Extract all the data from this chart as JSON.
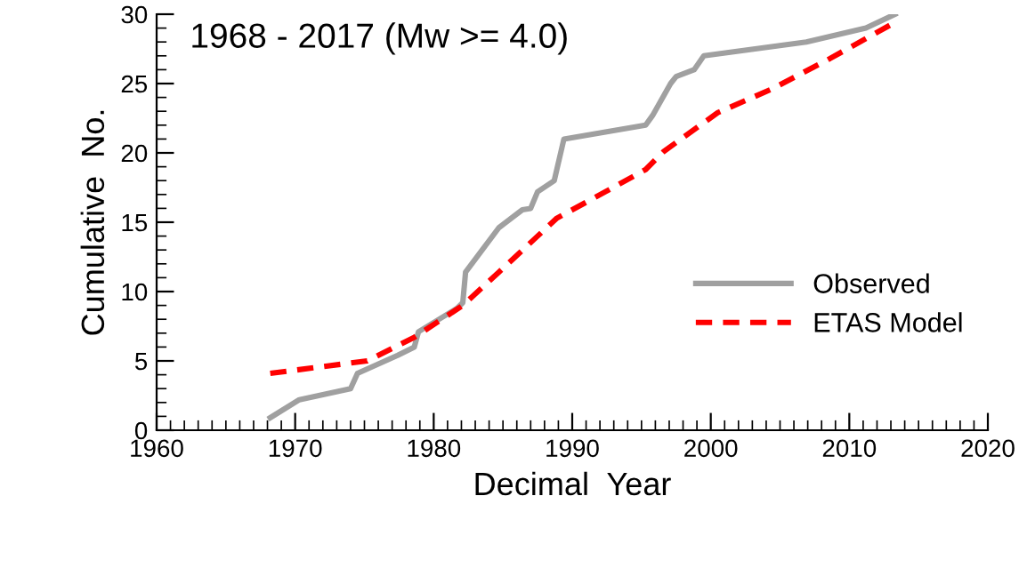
{
  "chart_data": {
    "type": "line",
    "title": "1968 - 2017 (Mw >= 4.0)",
    "xlabel": "Decimal  Year",
    "ylabel": "Cumulative  No.",
    "xlim": [
      1960,
      2020
    ],
    "xticks": [
      1960,
      1970,
      1980,
      1990,
      2000,
      2010,
      2020
    ],
    "ylim": [
      0,
      30
    ],
    "yticks": [
      0,
      5,
      10,
      15,
      20,
      25,
      30
    ],
    "grid": false,
    "legend": "right",
    "marker": "none",
    "series": [
      {
        "name": "Observed",
        "color": "#a0a0a0",
        "line_style": "solid",
        "x": [
          1968.2,
          1970.3,
          1974.0,
          1974.5,
          1977.4,
          1978.6,
          1978.9,
          1981.7,
          1982.1,
          1982.3,
          1984.7,
          1986.4,
          1987.0,
          1987.5,
          1988.7,
          1989.4,
          1995.3,
          1995.8,
          1997.1,
          1997.5,
          1998.8,
          1999.5,
          2006.9,
          2011.2,
          2013.3
        ],
        "values": [
          0.9,
          2.2,
          3.0,
          4.1,
          5.4,
          6.0,
          7.1,
          8.8,
          9.2,
          11.4,
          14.6,
          15.9,
          16.0,
          17.2,
          18.0,
          21.0,
          22.0,
          22.7,
          25.0,
          25.5,
          26.0,
          27.0,
          28.0,
          29.0,
          30.0
        ]
      },
      {
        "name": "ETAS Model",
        "color": "#ff0000",
        "line_style": "dashed",
        "x": [
          1968.2,
          1975.2,
          1978.6,
          1982.1,
          1984.7,
          1988.9,
          1992.4,
          1995.3,
          1996.6,
          2000.5,
          2004.4,
          2008.6,
          2013.1
        ],
        "values": [
          4.1,
          5.0,
          6.7,
          9.0,
          11.4,
          15.3,
          17.2,
          18.8,
          20.1,
          22.9,
          24.6,
          26.8,
          29.3
        ]
      }
    ]
  }
}
